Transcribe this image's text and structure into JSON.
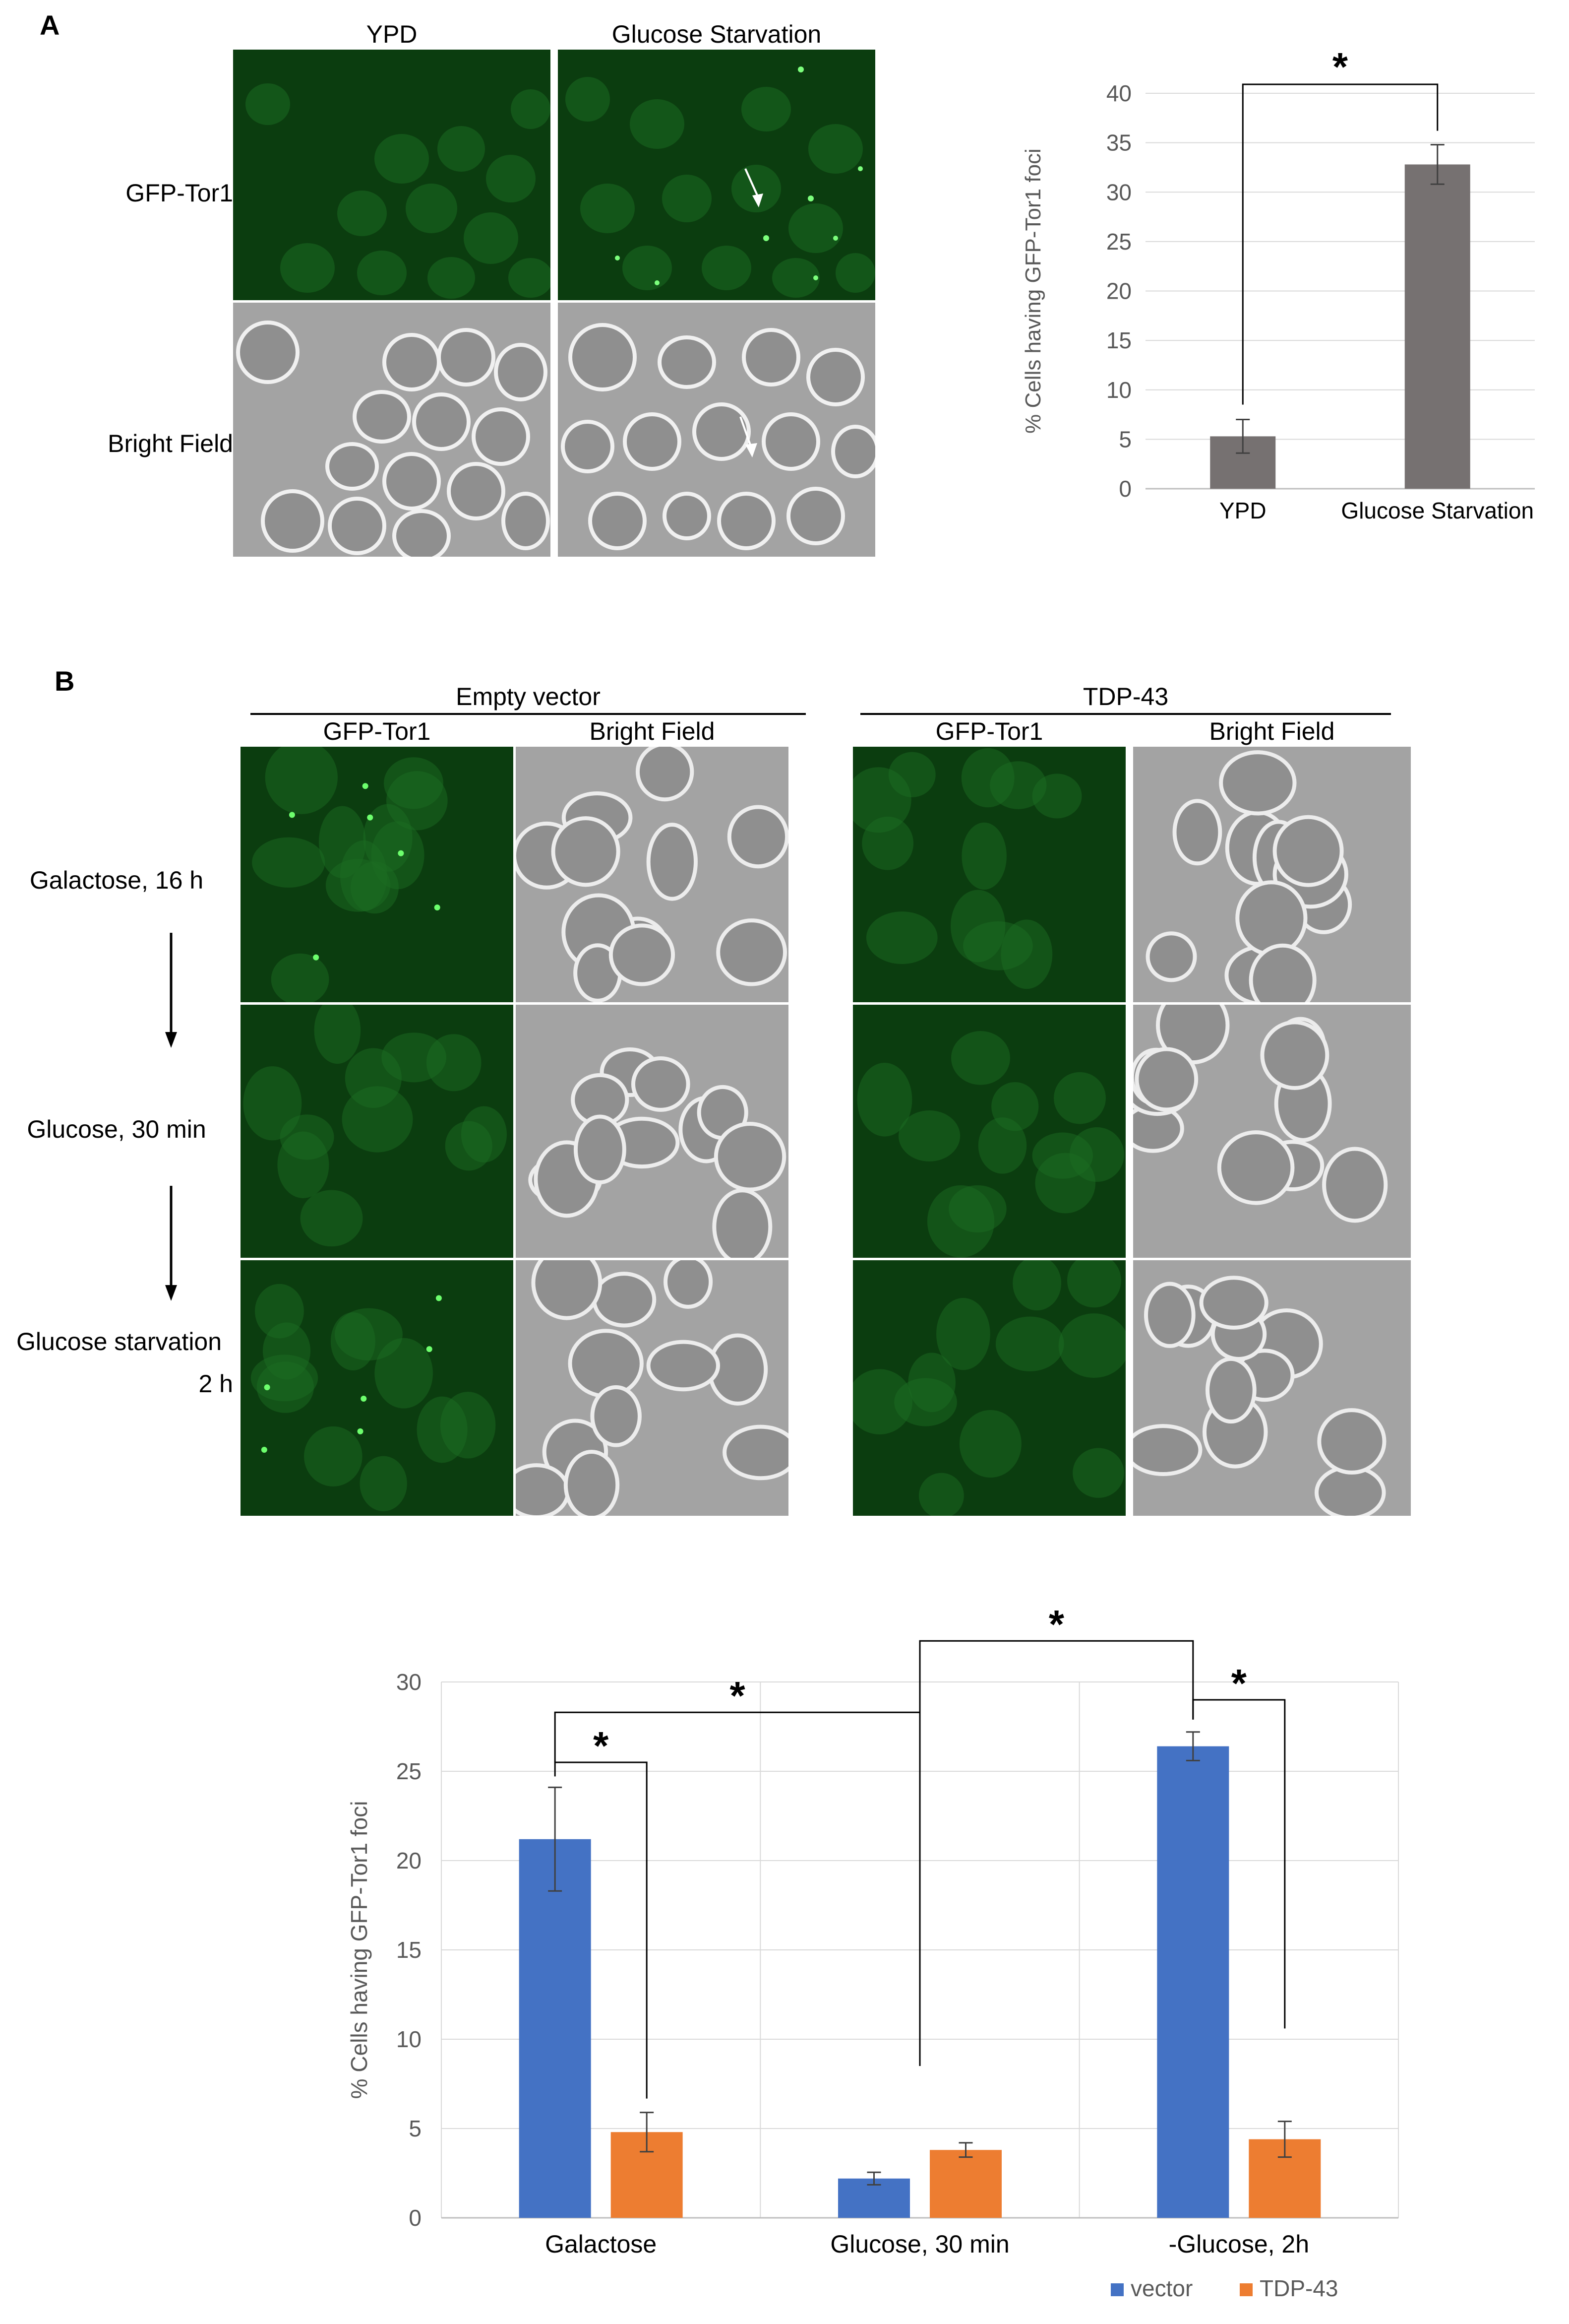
{
  "panel_a": {
    "letter": "A",
    "col_labels": [
      "YPD",
      "Glucose Starvation"
    ],
    "row_labels": [
      "GFP-Tor1",
      "Bright Field"
    ]
  },
  "panel_b": {
    "letter": "B",
    "groups": [
      "Empty vector",
      "TDP-43"
    ],
    "col_labels": [
      "GFP-Tor1",
      "Bright Field"
    ],
    "row_labels": [
      "Galactose, 16 h",
      "Glucose,  30 min",
      "Glucose starvation",
      "2 h"
    ]
  },
  "colors": {
    "bar_gray": "#767171",
    "vector": "#4472c4",
    "tdp43": "#ed7d31",
    "grid": "#d9d9d9",
    "fluor_green": "#1f8a2a"
  },
  "chart_data": [
    {
      "type": "bar",
      "ylabel": "% Cells having GFP-Tor1 foci",
      "categories": [
        "YPD",
        "Glucose Starvation"
      ],
      "values": [
        5.3,
        32.8
      ],
      "errors": [
        1.7,
        2.0
      ],
      "ylim": [
        0,
        40
      ],
      "yticks": [
        "0",
        "5",
        "10",
        "15",
        "20",
        "25",
        "30",
        "35",
        "40"
      ],
      "grid": true,
      "significance": [
        {
          "pair": [
            0,
            1
          ],
          "label": "*"
        }
      ]
    },
    {
      "type": "bar",
      "ylabel": "% Cells having GFP-Tor1 foci",
      "categories": [
        "Galactose",
        "Glucose,  30 min",
        "-Glucose, 2h"
      ],
      "series": [
        {
          "name": "vector",
          "values": [
            21.2,
            2.2,
            26.4
          ],
          "errors": [
            2.9,
            0.35,
            0.8
          ]
        },
        {
          "name": "TDP-43",
          "values": [
            4.8,
            3.8,
            4.4
          ],
          "errors": [
            1.1,
            0.4,
            1.0
          ]
        }
      ],
      "ylim": [
        0,
        30
      ],
      "yticks": [
        "0",
        "5",
        "10",
        "15",
        "20",
        "25",
        "30"
      ],
      "grid": true,
      "legend": "bottom",
      "significance": [
        {
          "label": "*"
        },
        {
          "label": "*"
        },
        {
          "label": "*"
        },
        {
          "label": "*"
        }
      ]
    }
  ]
}
